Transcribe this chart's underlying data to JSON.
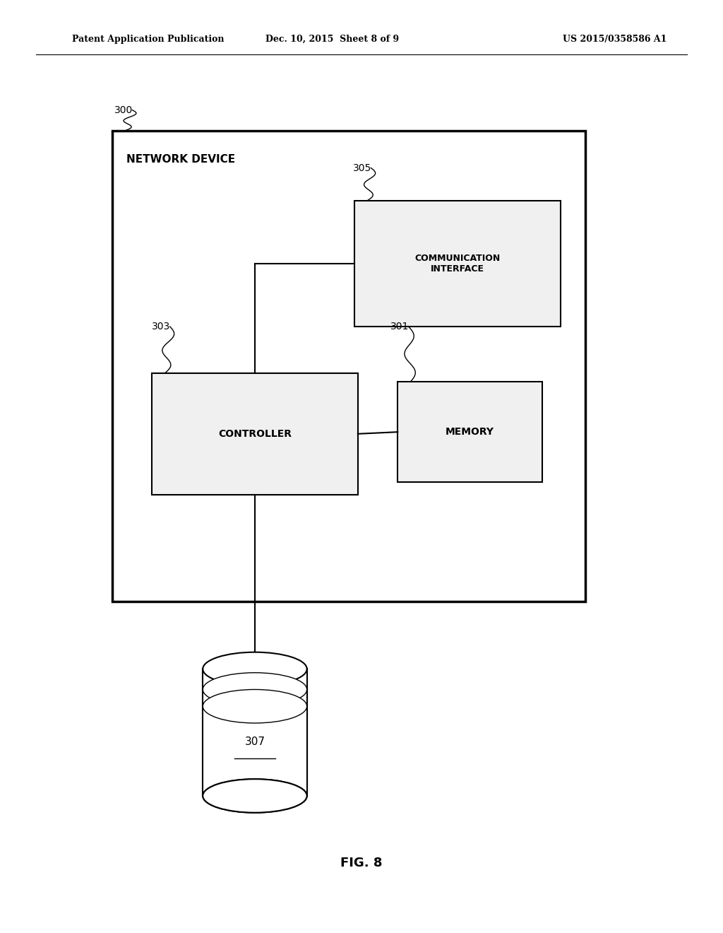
{
  "bg_color": "#ffffff",
  "header_left": "Patent Application Publication",
  "header_center": "Dec. 10, 2015  Sheet 8 of 9",
  "header_right": "US 2015/0358586 A1",
  "footer_label": "FIG. 8",
  "network_device_label": "NETWORK DEVICE",
  "comm_interface_label": "COMMUNICATION\nINTERFACE",
  "controller_label": "CONTROLLER",
  "memory_label": "MEMORY",
  "line_color": "#000000",
  "text_color": "#000000"
}
